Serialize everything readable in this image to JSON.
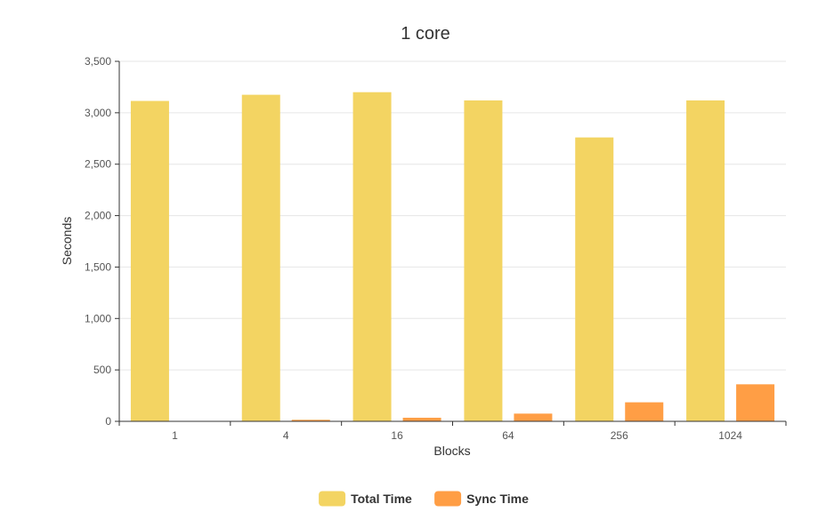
{
  "chart_data": {
    "type": "bar",
    "title": "1 core",
    "xlabel": "Blocks",
    "ylabel": "Seconds",
    "categories": [
      "1",
      "4",
      "16",
      "64",
      "256",
      "1024"
    ],
    "ylim": [
      0,
      3500
    ],
    "yticks": [
      0,
      500,
      1000,
      1500,
      2000,
      2500,
      3000,
      3500
    ],
    "ytick_labels": [
      "0",
      "500",
      "1,000",
      "1,500",
      "2,000",
      "2,500",
      "3,000",
      "3,500"
    ],
    "grid": true,
    "legend_position": "bottom-center",
    "series": [
      {
        "name": "Total Time",
        "color": "#f3d462",
        "values": [
          3115,
          3175,
          3200,
          3120,
          2760,
          3120
        ]
      },
      {
        "name": "Sync Time",
        "color": "#ff9e45",
        "values": [
          3,
          15,
          35,
          75,
          185,
          360
        ]
      }
    ]
  }
}
